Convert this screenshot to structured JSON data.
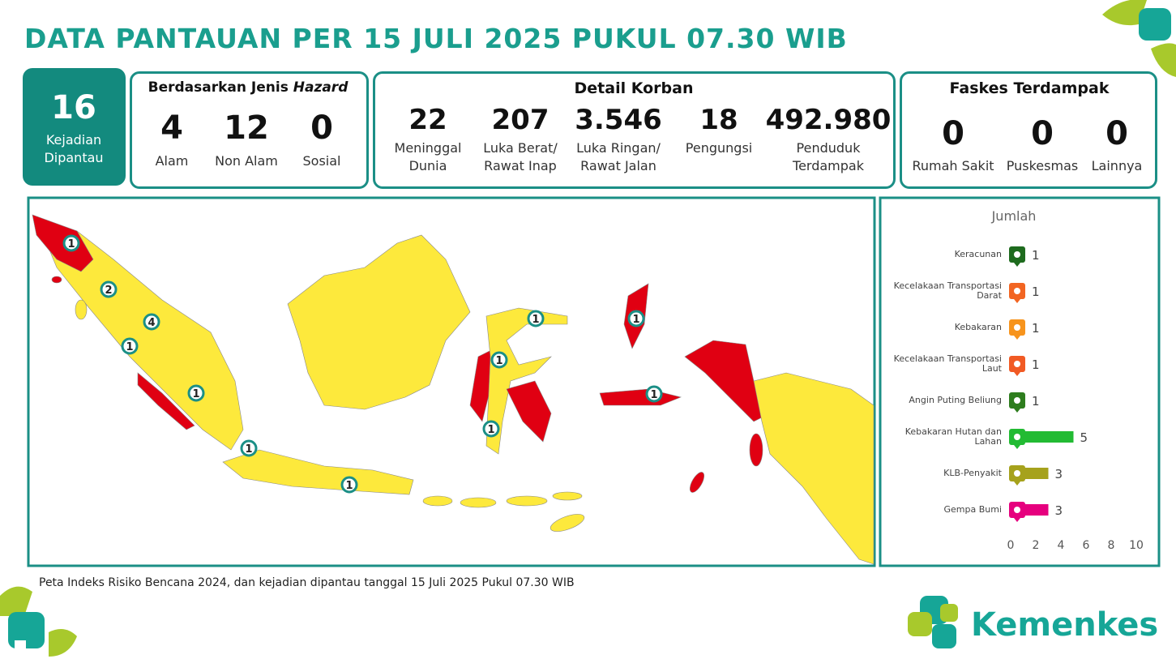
{
  "header": {
    "title": "DATA PANTAUAN PER 15 JULI 2025 PUKUL 07.30 WIB"
  },
  "summary": {
    "value": "16",
    "label": "Kejadian Dipantau"
  },
  "hazard": {
    "title_prefix": "Berdasarkan Jenis",
    "title_emphasis": "Hazard",
    "items": [
      {
        "value": "4",
        "label": "Alam"
      },
      {
        "value": "12",
        "label": "Non Alam"
      },
      {
        "value": "0",
        "label": "Sosial"
      }
    ]
  },
  "casualties": {
    "title": "Detail Korban",
    "items": [
      {
        "value": "22",
        "label": "Meninggal Dunia"
      },
      {
        "value": "207",
        "label": "Luka Berat/ Rawat Inap"
      },
      {
        "value": "3.546",
        "label": "Luka Ringan/ Rawat Jalan"
      },
      {
        "value": "18",
        "label": "Pengungsi"
      },
      {
        "value": "492.980",
        "label": "Penduduk Terdampak"
      }
    ]
  },
  "facilities": {
    "title": "Faskes Terdampak",
    "items": [
      {
        "value": "0",
        "label": "Rumah Sakit"
      },
      {
        "value": "0",
        "label": "Puskesmas"
      },
      {
        "value": "0",
        "label": "Lainnya"
      }
    ]
  },
  "map": {
    "markers": [
      "1",
      "2",
      "4",
      "1",
      "1",
      "1",
      "1",
      "1",
      "1",
      "1",
      "1",
      "1"
    ]
  },
  "chart_data": {
    "type": "bar",
    "orientation": "horizontal",
    "x_label": "Jumlah",
    "categories": [
      "Keracunan",
      "Kecelakaan Transportasi Darat",
      "Kebakaran",
      "Kecelakaan Transportasi Laut",
      "Angin Puting Beliung",
      "Kebakaran Hutan dan Lahan",
      "KLB-Penyakit",
      "Gempa Bumi"
    ],
    "values": [
      1,
      1,
      1,
      1,
      1,
      5,
      3,
      3
    ],
    "colors": [
      "#1e6b1e",
      "#f26522",
      "#f7941d",
      "#f15a24",
      "#2e7d1e",
      "#22bb33",
      "#a6a21c",
      "#e6007e"
    ],
    "xlim": [
      0,
      10
    ],
    "xticks": [
      0,
      2,
      4,
      6,
      8,
      10
    ]
  },
  "footnote": "Peta Indeks Risiko Bencana 2024, dan kejadian dipantau tanggal 15 Juli 2025 Pukul 07.30 WIB",
  "logo": {
    "text": "Kemenkes"
  }
}
